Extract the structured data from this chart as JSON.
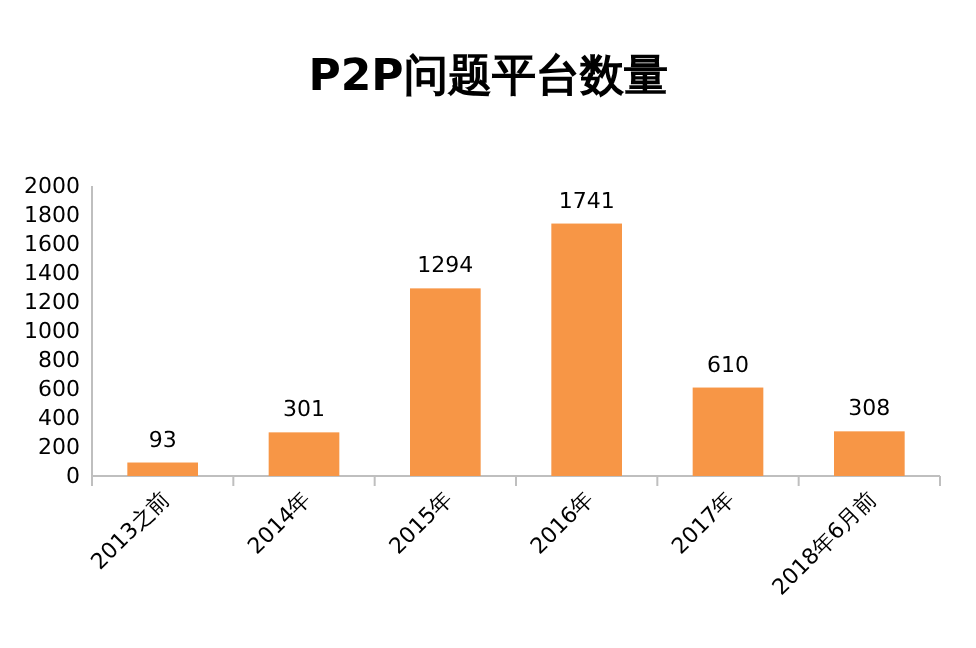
{
  "chart_data": {
    "type": "bar",
    "title": "P2P问题平台数量",
    "categories": [
      "2013之前",
      "2014年",
      "2015年",
      "2016年",
      "2017年",
      "2018年6月前"
    ],
    "values": [
      93,
      301,
      1294,
      1741,
      610,
      308
    ],
    "color": "#f79646",
    "ylim": [
      0,
      2000
    ],
    "yticks": [
      0,
      200,
      400,
      600,
      800,
      1000,
      1200,
      1400,
      1600,
      1800,
      2000
    ],
    "data_labels": true,
    "grid": false
  }
}
